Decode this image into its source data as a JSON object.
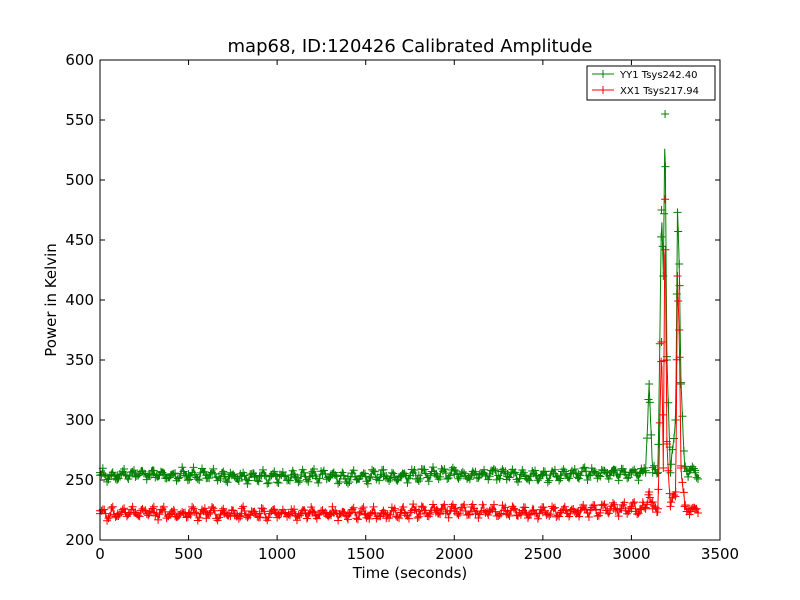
{
  "chart_data": {
    "type": "line",
    "title": "map68, ID:120426 Calibrated Amplitude",
    "xlabel": "Time (seconds)",
    "ylabel": "Power in Kelvin",
    "xlim": [
      0,
      3500
    ],
    "ylim": [
      200,
      600
    ],
    "xticks": [
      0,
      500,
      1000,
      1500,
      2000,
      2500,
      3000,
      3500
    ],
    "yticks": [
      200,
      250,
      300,
      350,
      400,
      450,
      500,
      550,
      600
    ],
    "grid": false,
    "legend_position": "top-right",
    "series": [
      {
        "name": "YY1 Tsys242.40",
        "color": "#008000",
        "marker": "+",
        "baseline": 254,
        "noise": 4,
        "x": [
          0,
          100,
          200,
          300,
          400,
          500,
          600,
          700,
          800,
          900,
          1000,
          1100,
          1200,
          1300,
          1400,
          1500,
          1600,
          1700,
          1800,
          1900,
          2000,
          2100,
          2200,
          2300,
          2400,
          2500,
          2600,
          2700,
          2800,
          2900,
          3000,
          3050,
          3080,
          3100,
          3120,
          3150,
          3170,
          3180,
          3190,
          3200,
          3220,
          3250,
          3260,
          3270,
          3280,
          3300,
          3330,
          3360
        ],
        "values": [
          254,
          254,
          255,
          255,
          254,
          255,
          254,
          253,
          253,
          253,
          253,
          253,
          254,
          253,
          253,
          253,
          253,
          253,
          254,
          255,
          255,
          255,
          255,
          255,
          254,
          254,
          254,
          255,
          256,
          256,
          256,
          256,
          256,
          330,
          256,
          256,
          475,
          420,
          555,
          350,
          256,
          300,
          473,
          430,
          330,
          260,
          258,
          256
        ]
      },
      {
        "name": "XX1 Tsys217.94",
        "color": "#ff0000",
        "marker": "+",
        "baseline": 222,
        "noise": 4,
        "x": [
          0,
          100,
          200,
          300,
          400,
          500,
          600,
          700,
          800,
          900,
          1000,
          1100,
          1200,
          1300,
          1400,
          1500,
          1600,
          1700,
          1800,
          1900,
          2000,
          2100,
          2200,
          2300,
          2400,
          2500,
          2600,
          2700,
          2800,
          2900,
          3000,
          3050,
          3080,
          3100,
          3120,
          3150,
          3170,
          3180,
          3190,
          3200,
          3220,
          3250,
          3260,
          3270,
          3280,
          3300,
          3330,
          3360
        ],
        "values": [
          222,
          222,
          223,
          223,
          222,
          222,
          223,
          222,
          222,
          222,
          222,
          222,
          223,
          222,
          222,
          222,
          222,
          223,
          224,
          225,
          224,
          224,
          224,
          224,
          223,
          223,
          223,
          224,
          225,
          226,
          226,
          226,
          226,
          240,
          226,
          226,
          365,
          260,
          484,
          280,
          228,
          240,
          420,
          375,
          260,
          228,
          226,
          226
        ]
      }
    ]
  }
}
